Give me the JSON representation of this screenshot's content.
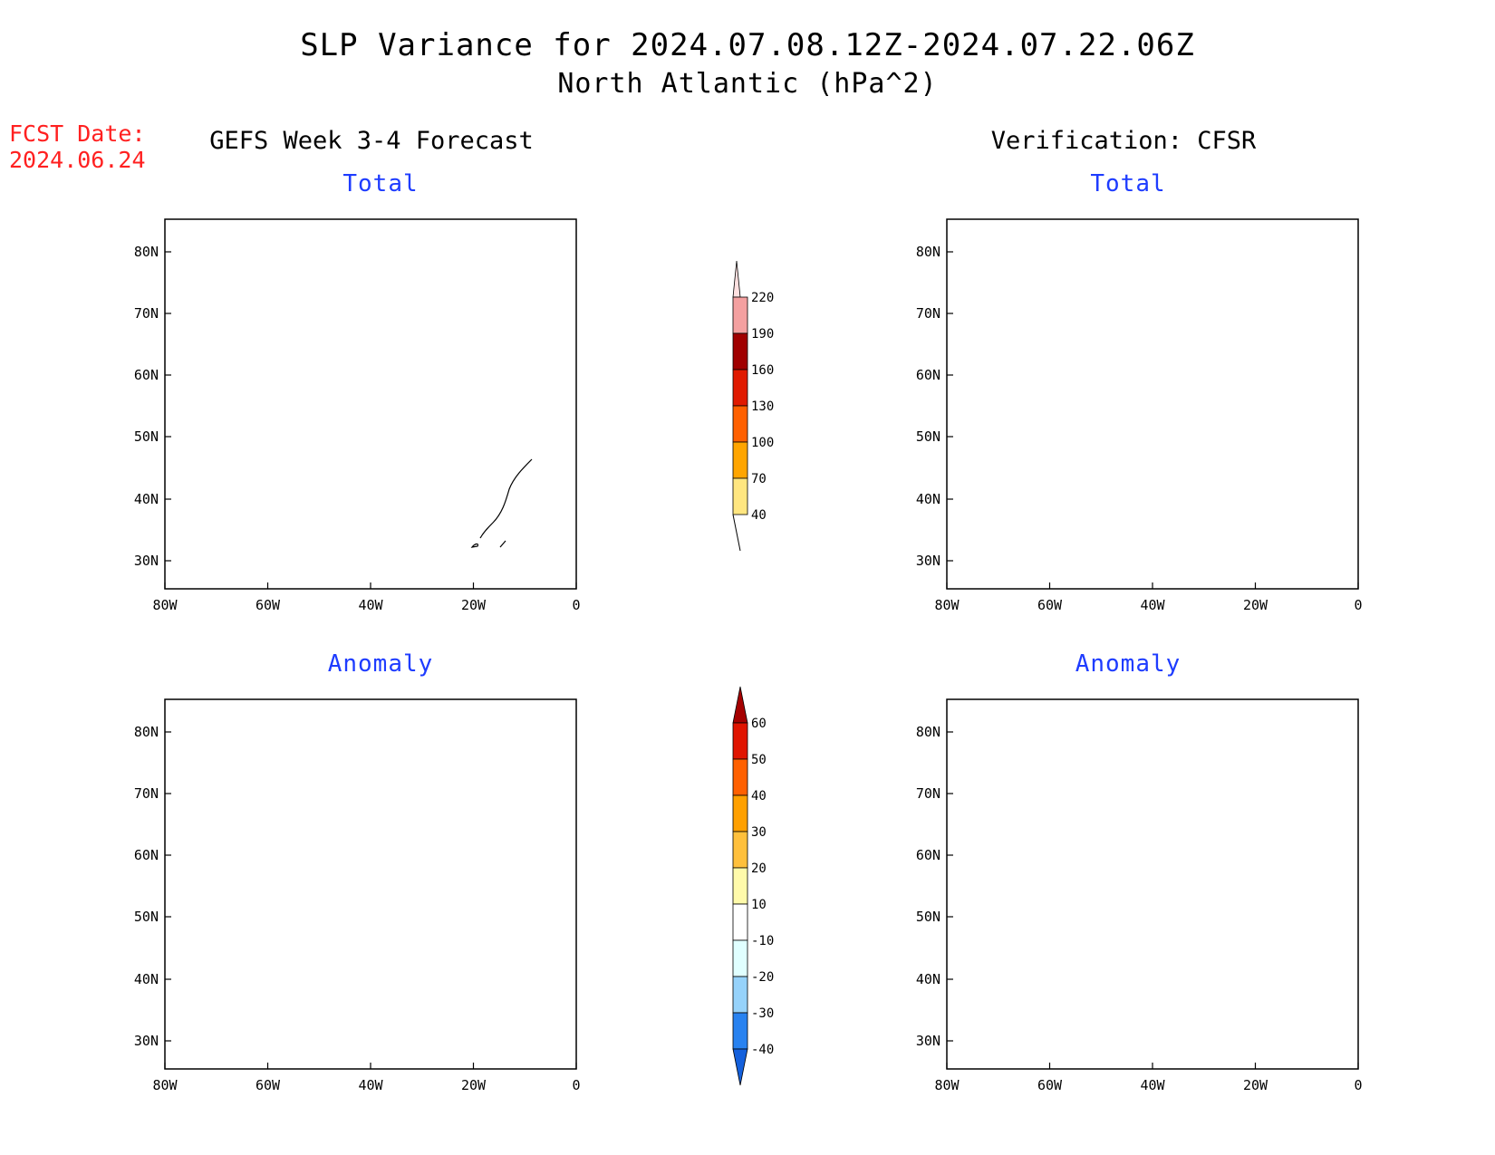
{
  "header": {
    "title": "SLP Variance for 2024.07.08.12Z-2024.07.22.06Z",
    "subtitle": "North Atlantic (hPa^2)",
    "fcst_label": "FCST Date:",
    "fcst_date": "2024.06.24"
  },
  "columns": {
    "left": "GEFS Week 3-4 Forecast",
    "right": "Verification: CFSR"
  },
  "panels": {
    "fcst_total": "Total",
    "fcst_anomaly": "Anomaly",
    "verif_total": "Total",
    "verif_anomaly": "Anomaly"
  },
  "axes": {
    "lon_ticks": [
      "80W",
      "60W",
      "40W",
      "20W",
      "0"
    ],
    "lat_ticks": [
      "80N",
      "70N",
      "60N",
      "50N",
      "40N",
      "30N"
    ]
  },
  "colorbars": {
    "total": {
      "levels": [
        "40",
        "70",
        "100",
        "130",
        "160",
        "190",
        "220"
      ],
      "colors": [
        "#ffe680",
        "#ffa500",
        "#ff6000",
        "#e01a00",
        "#a00000",
        "#f4a0a0",
        "#ffe0e0"
      ]
    },
    "anomaly": {
      "levels": [
        "-40",
        "-30",
        "-20",
        "-10",
        "10",
        "20",
        "30",
        "40",
        "50",
        "60"
      ],
      "colors": [
        "#1460dc",
        "#2882f0",
        "#96d2fa",
        "#e0ffff",
        "#ffffff",
        "#fffaaa",
        "#ffc03c",
        "#ffa000",
        "#ff6000",
        "#e01400",
        "#a50000"
      ]
    }
  },
  "colors": {
    "title_blue": "#1e3cff",
    "fcst_red": "#ff2020"
  }
}
